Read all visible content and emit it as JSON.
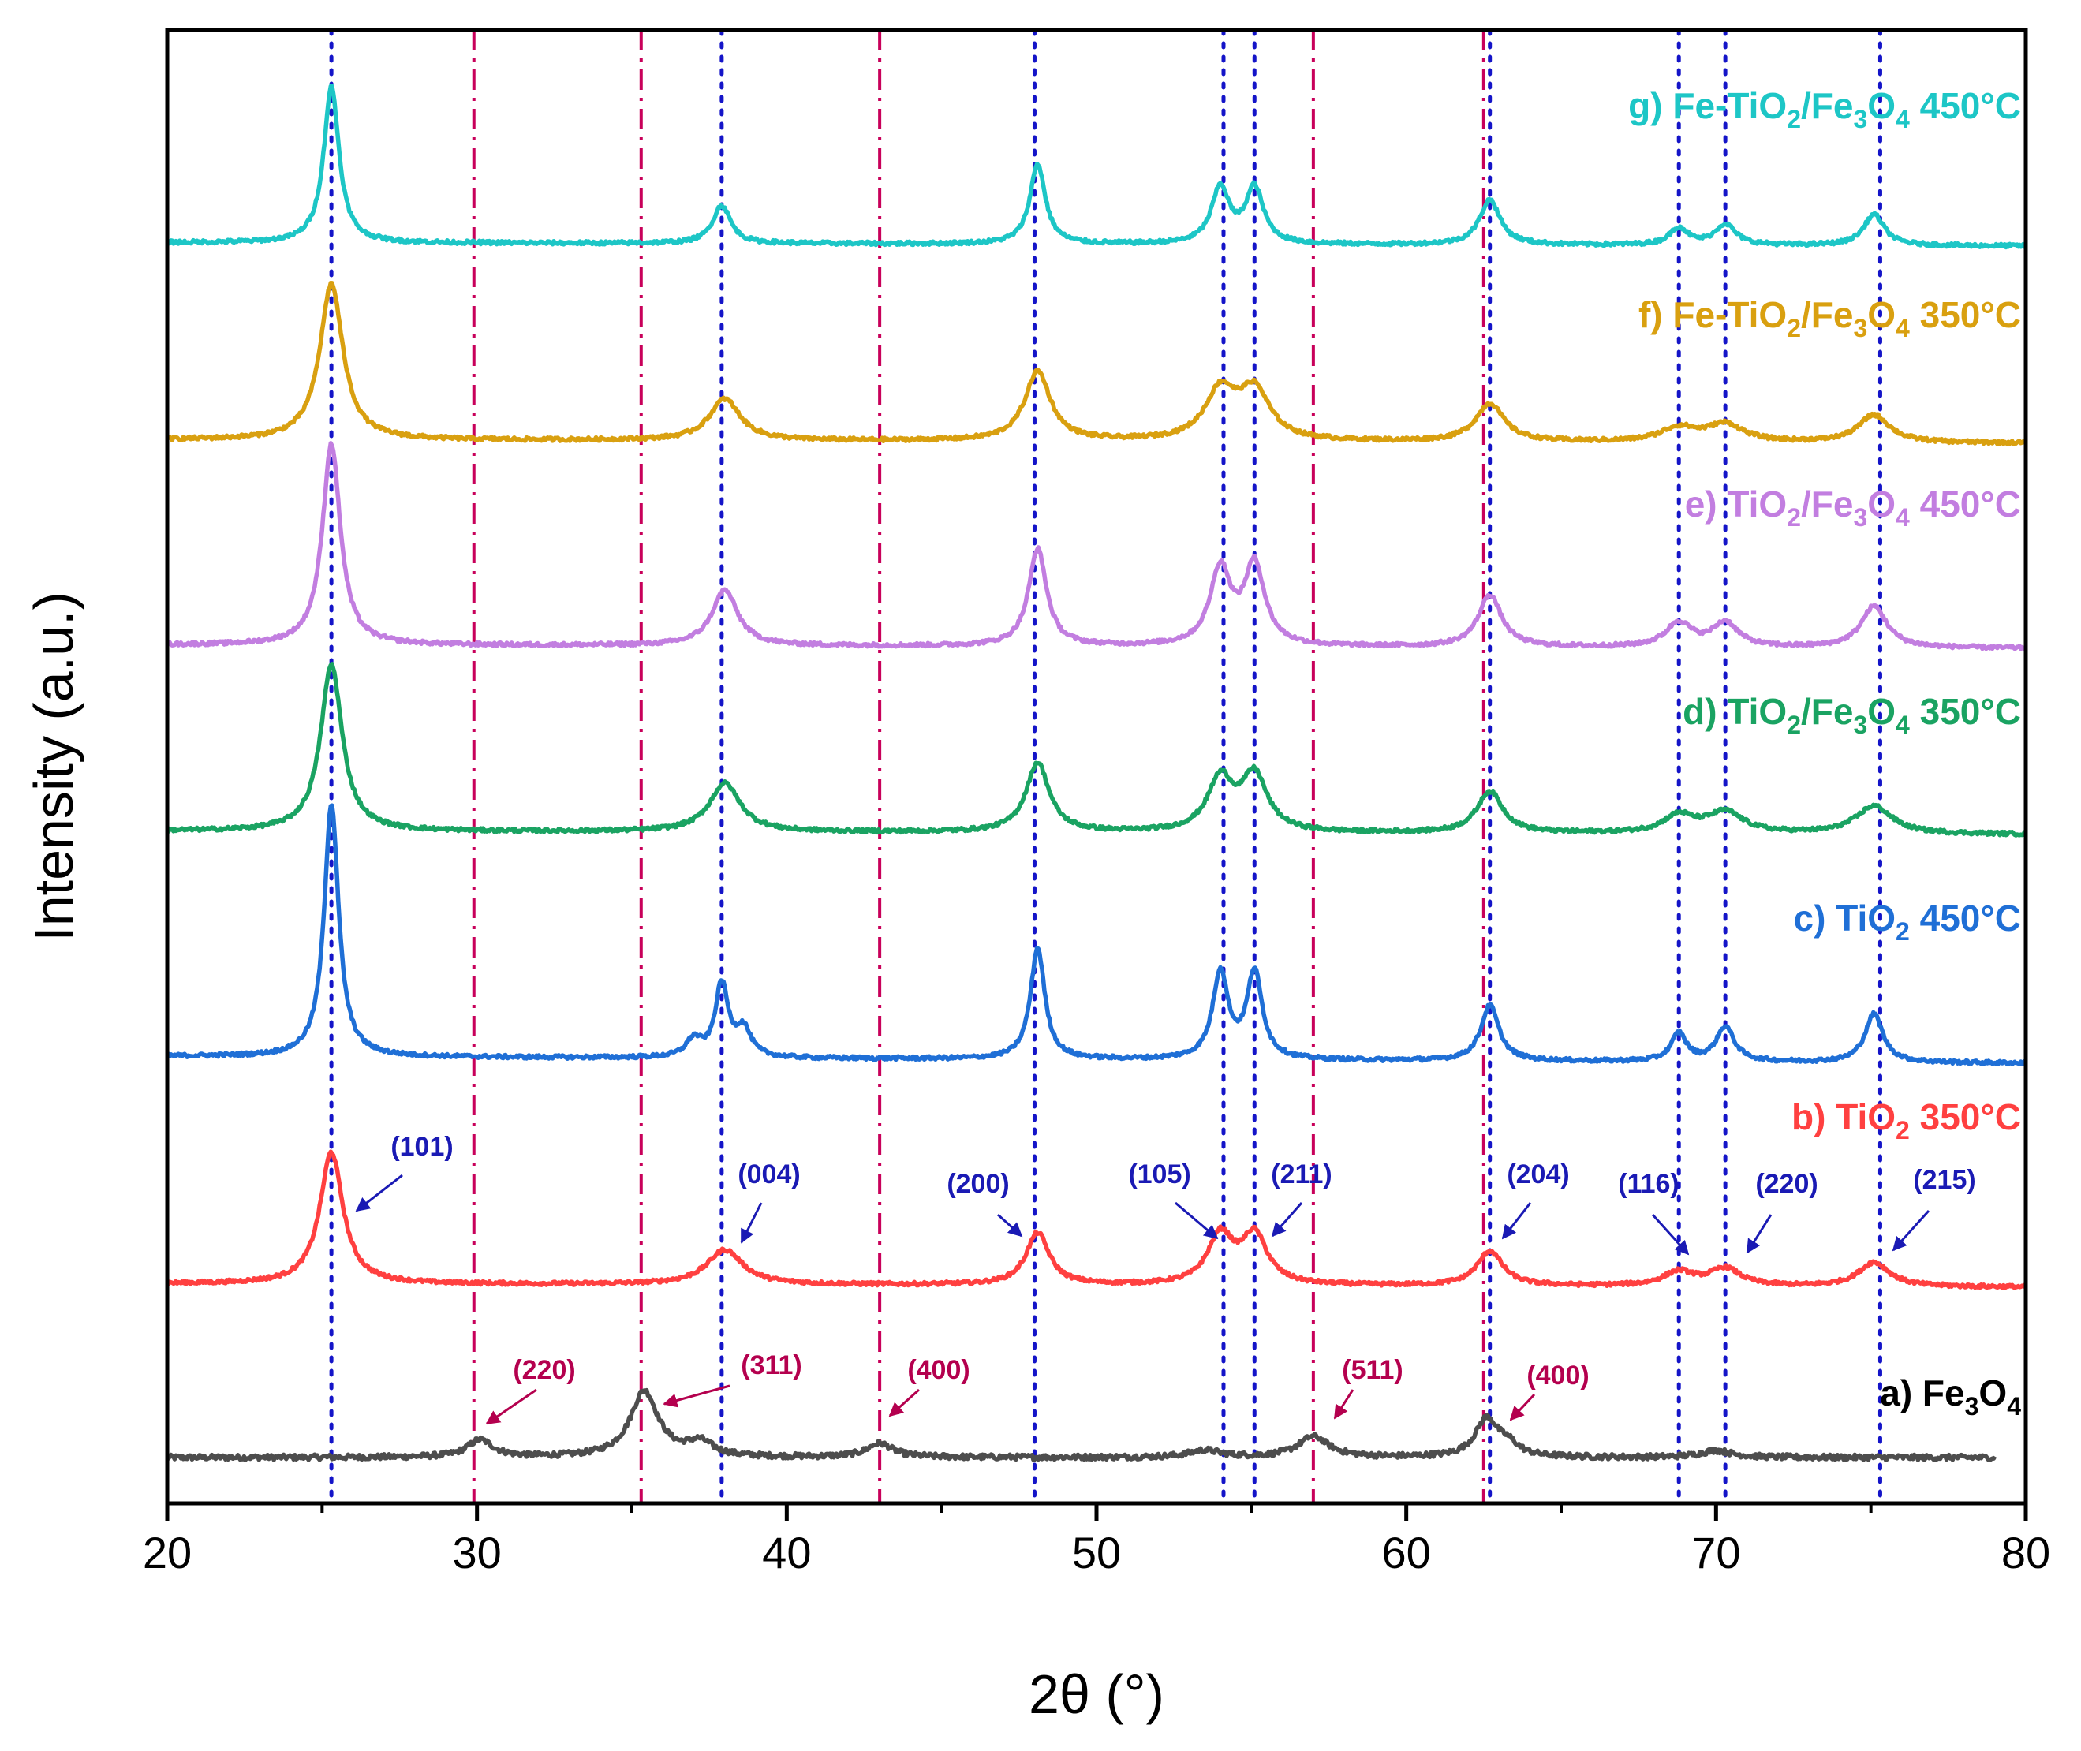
{
  "chart_data": {
    "type": "line",
    "xlabel": "2θ (°)",
    "ylabel": "Intensity (a.u.)",
    "xlim": [
      20,
      80
    ],
    "xticks": [
      20,
      30,
      40,
      50,
      60,
      70,
      80
    ],
    "xtick_labels": [
      "20",
      "30",
      "40",
      "50",
      "60",
      "70",
      "80"
    ],
    "series": [
      {
        "id": "a",
        "name": "a) Fe3O4",
        "label_parts": [
          [
            "a) Fe",
            "n"
          ],
          [
            "3",
            "sub"
          ],
          [
            "O",
            "n"
          ],
          [
            "4",
            "sub"
          ]
        ],
        "color": "#4d4d4d",
        "x_end": 79,
        "baseline": 0.0,
        "noise": 1.5,
        "peaks": [
          {
            "x": 30.1,
            "h": 5,
            "w": 0.5
          },
          {
            "x": 35.4,
            "h": 19,
            "w": 0.55
          },
          {
            "x": 37.2,
            "h": 4,
            "w": 0.5
          },
          {
            "x": 43.0,
            "h": 4,
            "w": 0.5
          },
          {
            "x": 53.5,
            "h": 2,
            "w": 0.6
          },
          {
            "x": 57.0,
            "h": 6,
            "w": 0.6
          },
          {
            "x": 62.6,
            "h": 11,
            "w": 0.45
          },
          {
            "x": 63.3,
            "h": 3,
            "w": 0.4
          },
          {
            "x": 70.0,
            "h": 2,
            "w": 0.6
          }
        ]
      },
      {
        "id": "b",
        "name": "b) TiO2 350°C",
        "label_parts": [
          [
            "b) TiO",
            "n"
          ],
          [
            "2",
            "sub"
          ],
          [
            " 350°C",
            "n"
          ]
        ],
        "color": "#ff4040",
        "baseline": 1.0,
        "noise": 1.0,
        "peaks": [
          {
            "x": 25.3,
            "h": 38,
            "w": 0.45
          },
          {
            "x": 38.0,
            "h": 10,
            "w": 0.7
          },
          {
            "x": 48.1,
            "h": 15,
            "w": 0.45
          },
          {
            "x": 54.0,
            "h": 14,
            "w": 0.5
          },
          {
            "x": 55.1,
            "h": 14,
            "w": 0.5
          },
          {
            "x": 62.7,
            "h": 10,
            "w": 0.5
          },
          {
            "x": 68.8,
            "h": 4,
            "w": 0.6
          },
          {
            "x": 70.3,
            "h": 5,
            "w": 0.6
          },
          {
            "x": 75.1,
            "h": 7,
            "w": 0.6
          }
        ]
      },
      {
        "id": "c",
        "name": "c) TiO2 450°C",
        "label_parts": [
          [
            "c) TiO",
            "n"
          ],
          [
            "2",
            "sub"
          ],
          [
            " 450°C",
            "n"
          ]
        ],
        "color": "#1f6fd6",
        "baseline": 2.0,
        "noise": 1.0,
        "peaks": [
          {
            "x": 25.3,
            "h": 73,
            "w": 0.28
          },
          {
            "x": 37.0,
            "h": 5,
            "w": 0.3
          },
          {
            "x": 37.9,
            "h": 21,
            "w": 0.25
          },
          {
            "x": 38.6,
            "h": 8,
            "w": 0.3
          },
          {
            "x": 48.1,
            "h": 32,
            "w": 0.28
          },
          {
            "x": 54.0,
            "h": 25,
            "w": 0.3
          },
          {
            "x": 55.1,
            "h": 25,
            "w": 0.3
          },
          {
            "x": 62.7,
            "h": 16,
            "w": 0.35
          },
          {
            "x": 68.8,
            "h": 8,
            "w": 0.3
          },
          {
            "x": 70.3,
            "h": 10,
            "w": 0.35
          },
          {
            "x": 75.1,
            "h": 14,
            "w": 0.35
          }
        ]
      },
      {
        "id": "d",
        "name": "d) TiO2/Fe3O4 350°C",
        "label_parts": [
          [
            "d) TiO",
            "n"
          ],
          [
            "2",
            "sub"
          ],
          [
            "/Fe",
            "n"
          ],
          [
            "3",
            "sub"
          ],
          [
            "O",
            "n"
          ],
          [
            "4",
            "sub"
          ],
          [
            " 350°C",
            "n"
          ]
        ],
        "color": "#1aa362",
        "baseline": 1.0,
        "noise": 1.0,
        "peaks": [
          {
            "x": 25.3,
            "h": 48,
            "w": 0.42
          },
          {
            "x": 38.0,
            "h": 14,
            "w": 0.6
          },
          {
            "x": 48.1,
            "h": 20,
            "w": 0.45
          },
          {
            "x": 54.0,
            "h": 15,
            "w": 0.5
          },
          {
            "x": 55.1,
            "h": 16,
            "w": 0.5
          },
          {
            "x": 62.7,
            "h": 12,
            "w": 0.5
          },
          {
            "x": 68.8,
            "h": 5,
            "w": 0.6
          },
          {
            "x": 70.3,
            "h": 6,
            "w": 0.7
          },
          {
            "x": 75.1,
            "h": 8,
            "w": 0.7
          }
        ]
      },
      {
        "id": "e",
        "name": "e) TiO2/Fe3O4 450°C",
        "label_parts": [
          [
            "e) TiO",
            "n"
          ],
          [
            "2",
            "sub"
          ],
          [
            "/Fe",
            "n"
          ],
          [
            "3",
            "sub"
          ],
          [
            "O",
            "n"
          ],
          [
            "4",
            "sub"
          ],
          [
            " 450°C",
            "n"
          ]
        ],
        "color": "#c27ee0",
        "baseline": 1.0,
        "noise": 1.0,
        "peaks": [
          {
            "x": 25.3,
            "h": 58,
            "w": 0.35
          },
          {
            "x": 38.0,
            "h": 16,
            "w": 0.5
          },
          {
            "x": 48.1,
            "h": 28,
            "w": 0.35
          },
          {
            "x": 54.0,
            "h": 22,
            "w": 0.4
          },
          {
            "x": 55.1,
            "h": 23,
            "w": 0.4
          },
          {
            "x": 62.7,
            "h": 15,
            "w": 0.45
          },
          {
            "x": 68.8,
            "h": 7,
            "w": 0.5
          },
          {
            "x": 70.3,
            "h": 7,
            "w": 0.5
          },
          {
            "x": 75.1,
            "h": 12,
            "w": 0.5
          }
        ]
      },
      {
        "id": "f",
        "name": "f) Fe-TiO2/Fe3O4 350°C",
        "label_parts": [
          [
            "f) Fe-TiO",
            "n"
          ],
          [
            "2",
            "sub"
          ],
          [
            "/Fe",
            "n"
          ],
          [
            "3",
            "sub"
          ],
          [
            "O",
            "n"
          ],
          [
            "4",
            "sub"
          ],
          [
            " 350°C",
            "n"
          ]
        ],
        "color": "#d9a010",
        "baseline": 1.0,
        "noise": 1.0,
        "peaks": [
          {
            "x": 25.3,
            "h": 45,
            "w": 0.45
          },
          {
            "x": 38.0,
            "h": 12,
            "w": 0.6
          },
          {
            "x": 48.1,
            "h": 20,
            "w": 0.5
          },
          {
            "x": 54.0,
            "h": 14,
            "w": 0.6
          },
          {
            "x": 55.1,
            "h": 14,
            "w": 0.6
          },
          {
            "x": 62.7,
            "h": 11,
            "w": 0.55
          },
          {
            "x": 68.8,
            "h": 4,
            "w": 0.7
          },
          {
            "x": 70.3,
            "h": 5,
            "w": 0.7
          },
          {
            "x": 75.1,
            "h": 8,
            "w": 0.6
          }
        ]
      },
      {
        "id": "g",
        "name": "g) Fe-TiO2/Fe3O4 450°C",
        "label_parts": [
          [
            "g) Fe-TiO",
            "n"
          ],
          [
            "2",
            "sub"
          ],
          [
            "/Fe",
            "n"
          ],
          [
            "3",
            "sub"
          ],
          [
            "O",
            "n"
          ],
          [
            "4",
            "sub"
          ],
          [
            " 450°C",
            "n"
          ]
        ],
        "color": "#1dc6c6",
        "baseline": 1.0,
        "noise": 1.0,
        "peaks": [
          {
            "x": 25.3,
            "h": 45,
            "w": 0.3
          },
          {
            "x": 37.9,
            "h": 11,
            "w": 0.35
          },
          {
            "x": 48.1,
            "h": 23,
            "w": 0.3
          },
          {
            "x": 54.0,
            "h": 16,
            "w": 0.35
          },
          {
            "x": 55.1,
            "h": 16,
            "w": 0.35
          },
          {
            "x": 62.7,
            "h": 13,
            "w": 0.4
          },
          {
            "x": 68.8,
            "h": 5,
            "w": 0.35
          },
          {
            "x": 70.3,
            "h": 6,
            "w": 0.4
          },
          {
            "x": 75.1,
            "h": 9,
            "w": 0.4
          }
        ]
      }
    ],
    "reference_lines": {
      "anatase": {
        "color": "#1414c8",
        "style": "dotted",
        "x": [
          25.3,
          37.9,
          48.0,
          54.1,
          55.1,
          62.7,
          68.8,
          70.3,
          75.3
        ]
      },
      "magnetite": {
        "color": "#c8005a",
        "style": "dash-dot",
        "x": [
          29.9,
          35.3,
          43.0,
          57.0,
          62.5
        ]
      }
    },
    "annotations": {
      "anatase": [
        {
          "text": "(101)",
          "peak_x": 25.7
        },
        {
          "text": "(004)",
          "peak_x": 38.3
        },
        {
          "text": "(200)",
          "peak_x": 47.5
        },
        {
          "text": "(105)",
          "peak_x": 53.8
        },
        {
          "text": "(211)",
          "peak_x": 55.6
        },
        {
          "text": "(204)",
          "peak_x": 63.0
        },
        {
          "text": "(116)",
          "peak_x": 68.7
        },
        {
          "text": "(220)",
          "peak_x": 70.5
        },
        {
          "text": "(215)",
          "peak_x": 75.5
        }
      ],
      "magnetite": [
        {
          "text": "(220)",
          "peak_x": 30.2
        },
        {
          "text": "(311)",
          "peak_x": 35.8
        },
        {
          "text": "(400)",
          "peak_x": 43.3
        },
        {
          "text": "(511)",
          "peak_x": 57.3
        },
        {
          "text": "(400)",
          "peak_x": 63.0
        }
      ]
    },
    "colors": {
      "anatase_label": "#1a1ab4",
      "magnetite_label": "#b4004e",
      "axis": "#000000"
    }
  }
}
